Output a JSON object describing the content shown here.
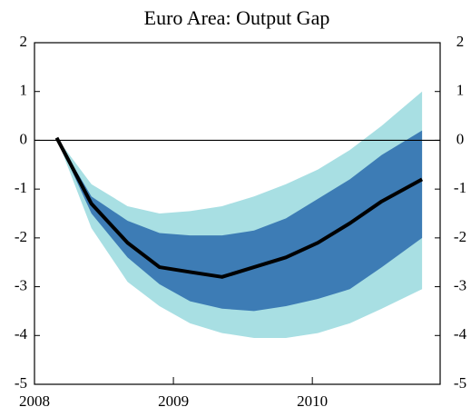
{
  "chart_data": {
    "type": "fan",
    "title": "Euro Area: Output Gap",
    "x": [
      2008.16,
      2008.41,
      2008.67,
      2008.9,
      2009.12,
      2009.35,
      2009.58,
      2009.81,
      2010.04,
      2010.27,
      2010.5,
      2010.79
    ],
    "bands": [
      {
        "color": "#a8dfe3",
        "upper": [
          0.05,
          -0.9,
          -1.35,
          -1.5,
          -1.45,
          -1.35,
          -1.15,
          -0.9,
          -0.6,
          -0.2,
          0.3,
          1.0
        ],
        "lower": [
          0.05,
          -1.8,
          -2.9,
          -3.4,
          -3.75,
          -3.95,
          -4.05,
          -4.05,
          -3.95,
          -3.75,
          -3.45,
          -3.05
        ]
      },
      {
        "color": "#3d7cb5",
        "upper": [
          0.05,
          -1.15,
          -1.65,
          -1.9,
          -1.95,
          -1.95,
          -1.85,
          -1.6,
          -1.2,
          -0.8,
          -0.3,
          0.2
        ],
        "lower": [
          0.05,
          -1.5,
          -2.4,
          -2.95,
          -3.3,
          -3.45,
          -3.5,
          -3.4,
          -3.25,
          -3.05,
          -2.6,
          -2.0
        ]
      }
    ],
    "line": {
      "color": "#000000",
      "values": [
        0.05,
        -1.3,
        -2.1,
        -2.6,
        -2.7,
        -2.8,
        -2.6,
        -2.4,
        -2.1,
        -1.7,
        -1.25,
        -0.8
      ]
    },
    "reference_line": 0,
    "xlim": [
      2008,
      2010.92
    ],
    "xticks": [
      2008,
      2009,
      2010
    ],
    "ylim": [
      -5,
      2
    ],
    "yticks": [
      -5,
      -4,
      -3,
      -2,
      -1,
      0,
      1,
      2
    ]
  }
}
